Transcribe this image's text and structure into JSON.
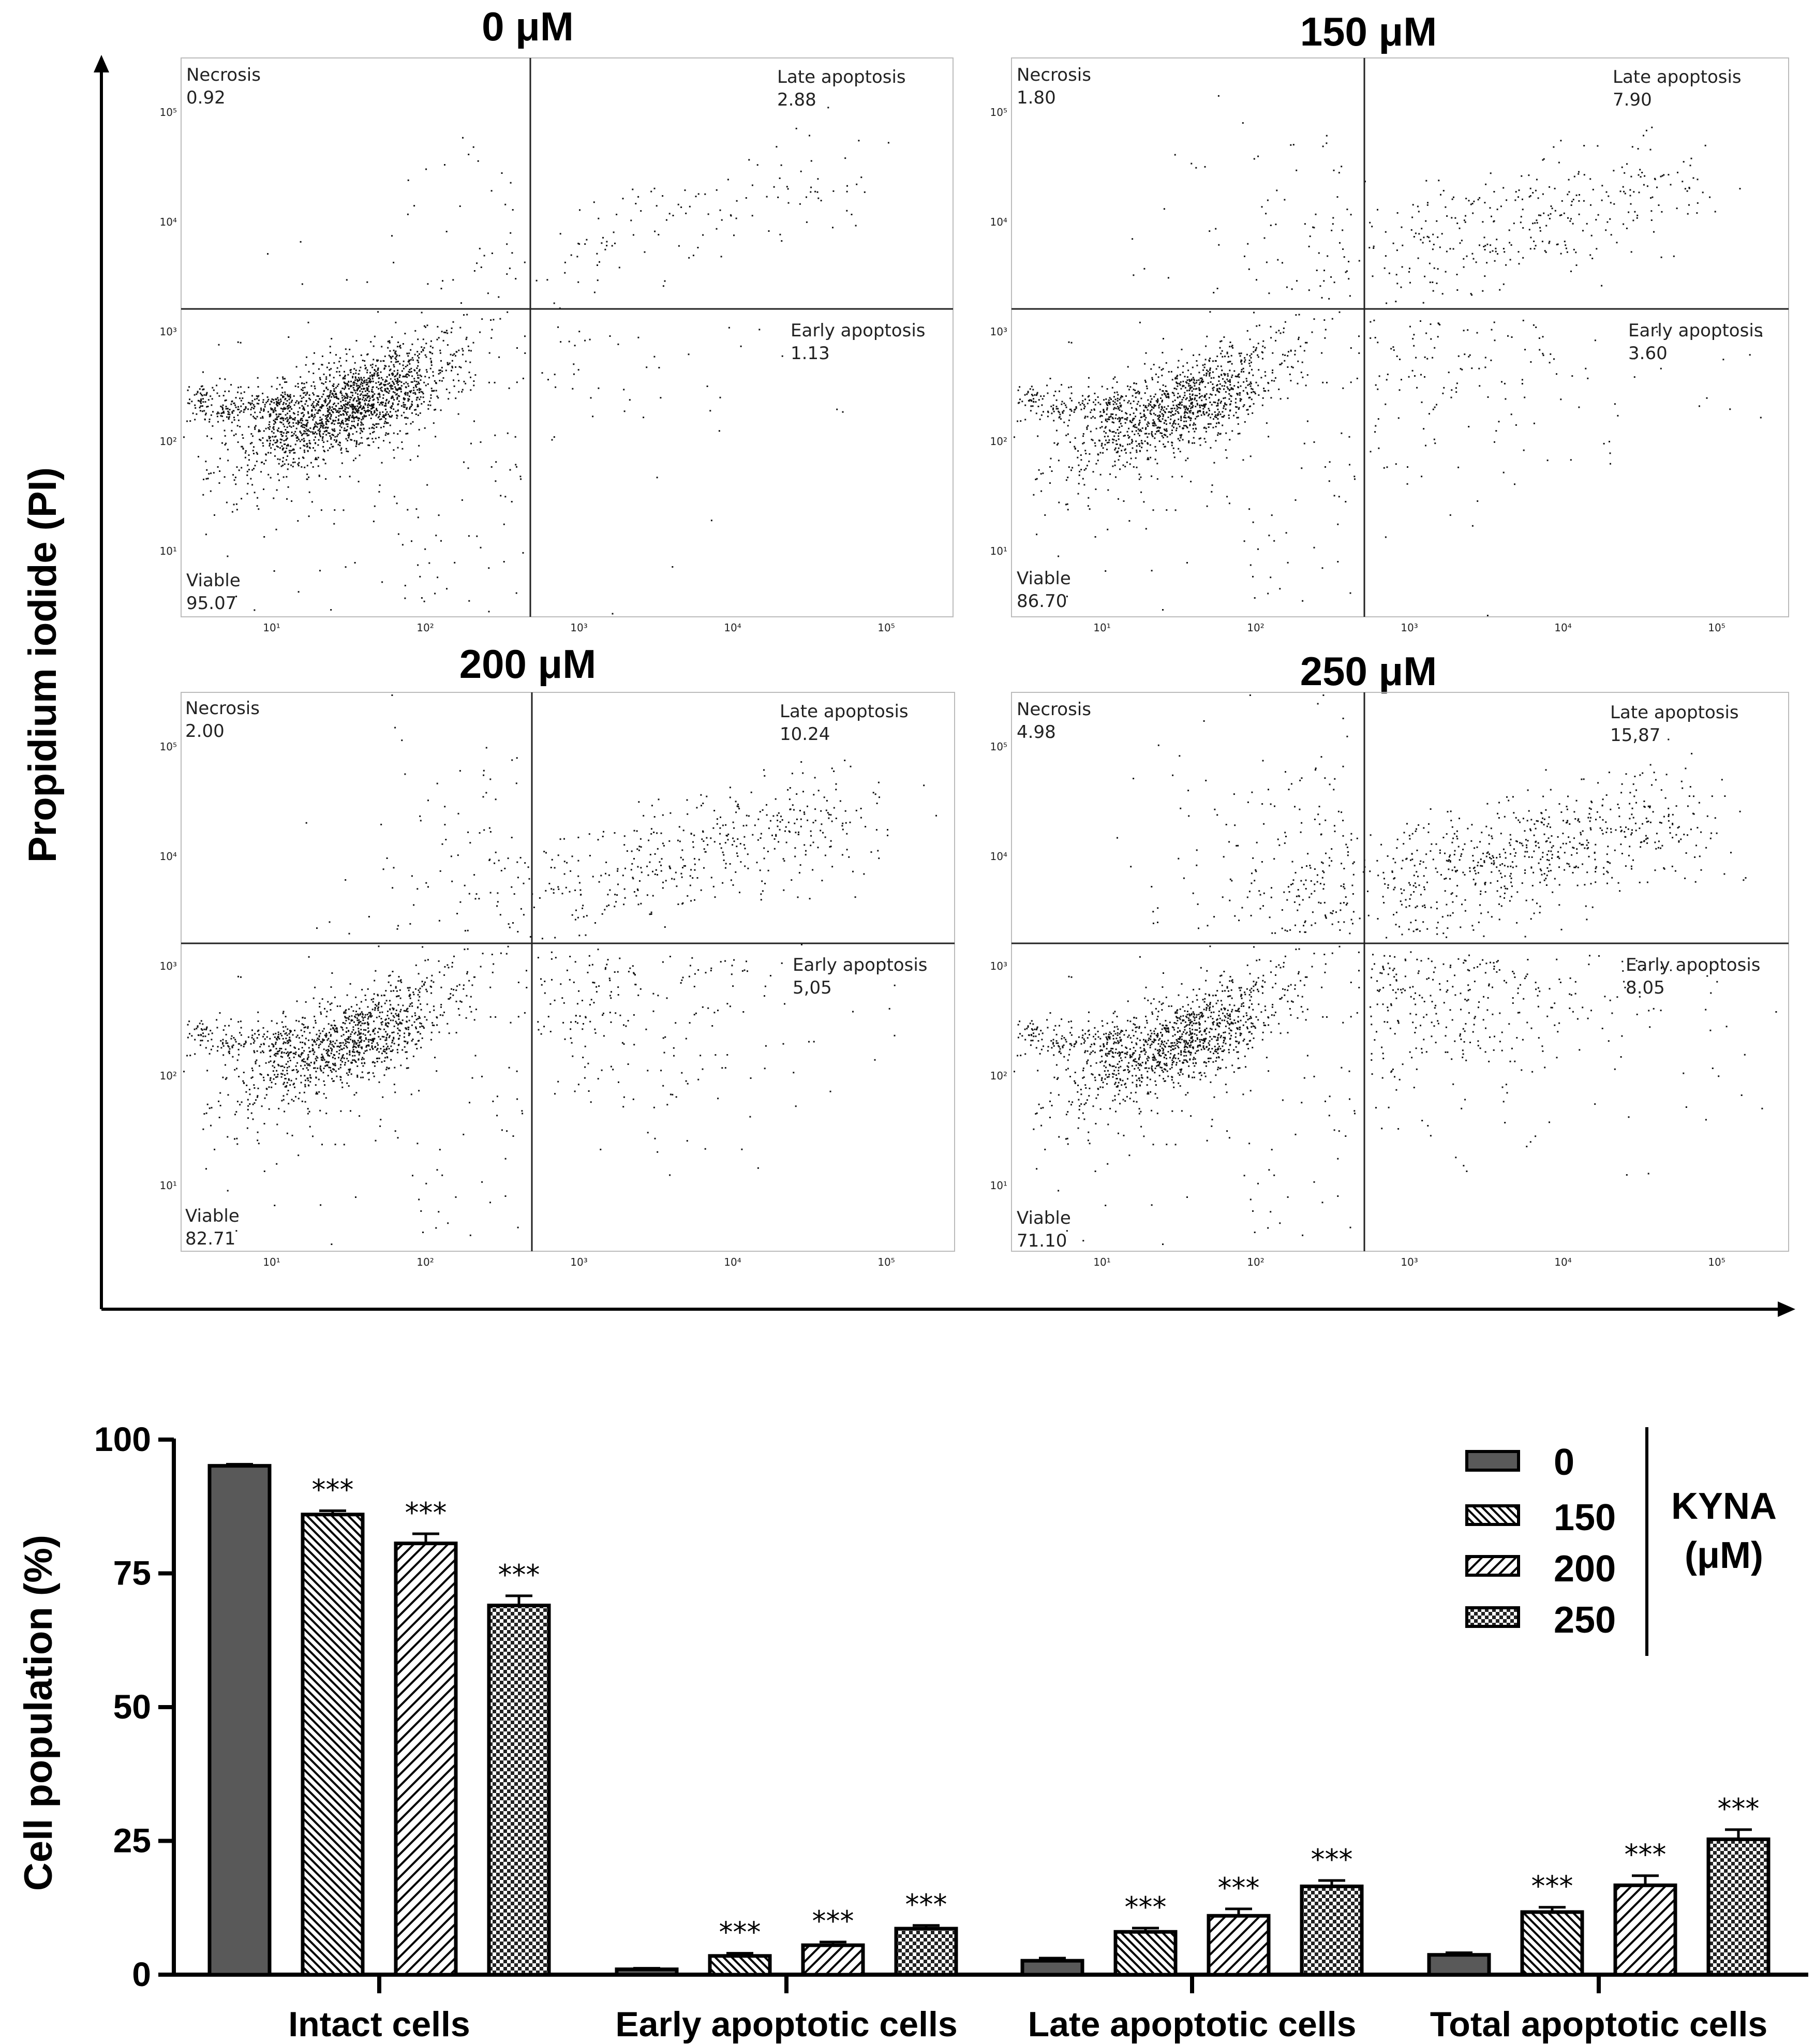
{
  "flow_panels": {
    "y_axis_title": "Propidium iodide (PI)",
    "decade_labels": [
      "10¹",
      "10²",
      "10³",
      "10⁴",
      "10⁵"
    ],
    "panels": [
      {
        "title": "0 μM",
        "necrosis_label": "Necrosis",
        "necrosis": "0.92",
        "late_label": "Late apoptosis",
        "late": "2.88",
        "early_label": "Early apoptosis",
        "early": "1.13",
        "viable_label": "Viable",
        "viable": "95.07"
      },
      {
        "title": "150 μM",
        "necrosis_label": "Necrosis",
        "necrosis": "1.80",
        "late_label": "Late apoptosis",
        "late": "7.90",
        "early_label": "Early apoptosis",
        "early": "3.60",
        "viable_label": "Viable",
        "viable": "86.70"
      },
      {
        "title": "200 μM",
        "necrosis_label": "Necrosis",
        "necrosis": "2.00",
        "late_label": "Late apoptosis",
        "late": "10.24",
        "early_label": "Early apoptosis",
        "early": "5,05",
        "viable_label": "Viable",
        "viable": "82.71"
      },
      {
        "title": "250 μM",
        "necrosis_label": "Necrosis",
        "necrosis": "4.98",
        "late_label": "Late apoptosis",
        "late": "15,87",
        "early_label": "Early apoptosis",
        "early": "8.05",
        "viable_label": "Viable",
        "viable": "71.10"
      }
    ]
  },
  "chart_data": {
    "type": "bar",
    "ylabel": "Cell population (%)",
    "ylim": [
      0,
      100
    ],
    "yticks": [
      0,
      25,
      50,
      75,
      100
    ],
    "categories": [
      "Intact cells",
      "Early apoptotic cells",
      "Late apoptotic cells",
      "Total apoptotic cells"
    ],
    "series": [
      {
        "name": "0",
        "values": [
          95.1,
          1.0,
          2.6,
          3.7
        ],
        "errors": [
          0.3,
          0.2,
          0.5,
          0.4
        ],
        "stars": [
          "",
          "",
          "",
          ""
        ],
        "fill": "solid-gray"
      },
      {
        "name": "150",
        "values": [
          86.0,
          3.5,
          8.0,
          11.7
        ],
        "errors": [
          0.7,
          0.5,
          0.7,
          0.9
        ],
        "stars": [
          "***",
          "***",
          "***",
          "***"
        ],
        "fill": "hatch-down"
      },
      {
        "name": "200",
        "values": [
          80.6,
          5.5,
          11.0,
          16.7
        ],
        "errors": [
          1.8,
          0.6,
          1.3,
          1.8
        ],
        "stars": [
          "***",
          "***",
          "***",
          "***"
        ],
        "fill": "hatch-up"
      },
      {
        "name": "250",
        "values": [
          69.0,
          8.6,
          16.5,
          25.3
        ],
        "errors": [
          1.8,
          0.6,
          1.1,
          1.8
        ],
        "stars": [
          "***",
          "***",
          "***",
          "***"
        ],
        "fill": "checker"
      }
    ],
    "legend_title_line1": "KYNA",
    "legend_title_line2": "(μM)",
    "legend_position": "top-right"
  }
}
